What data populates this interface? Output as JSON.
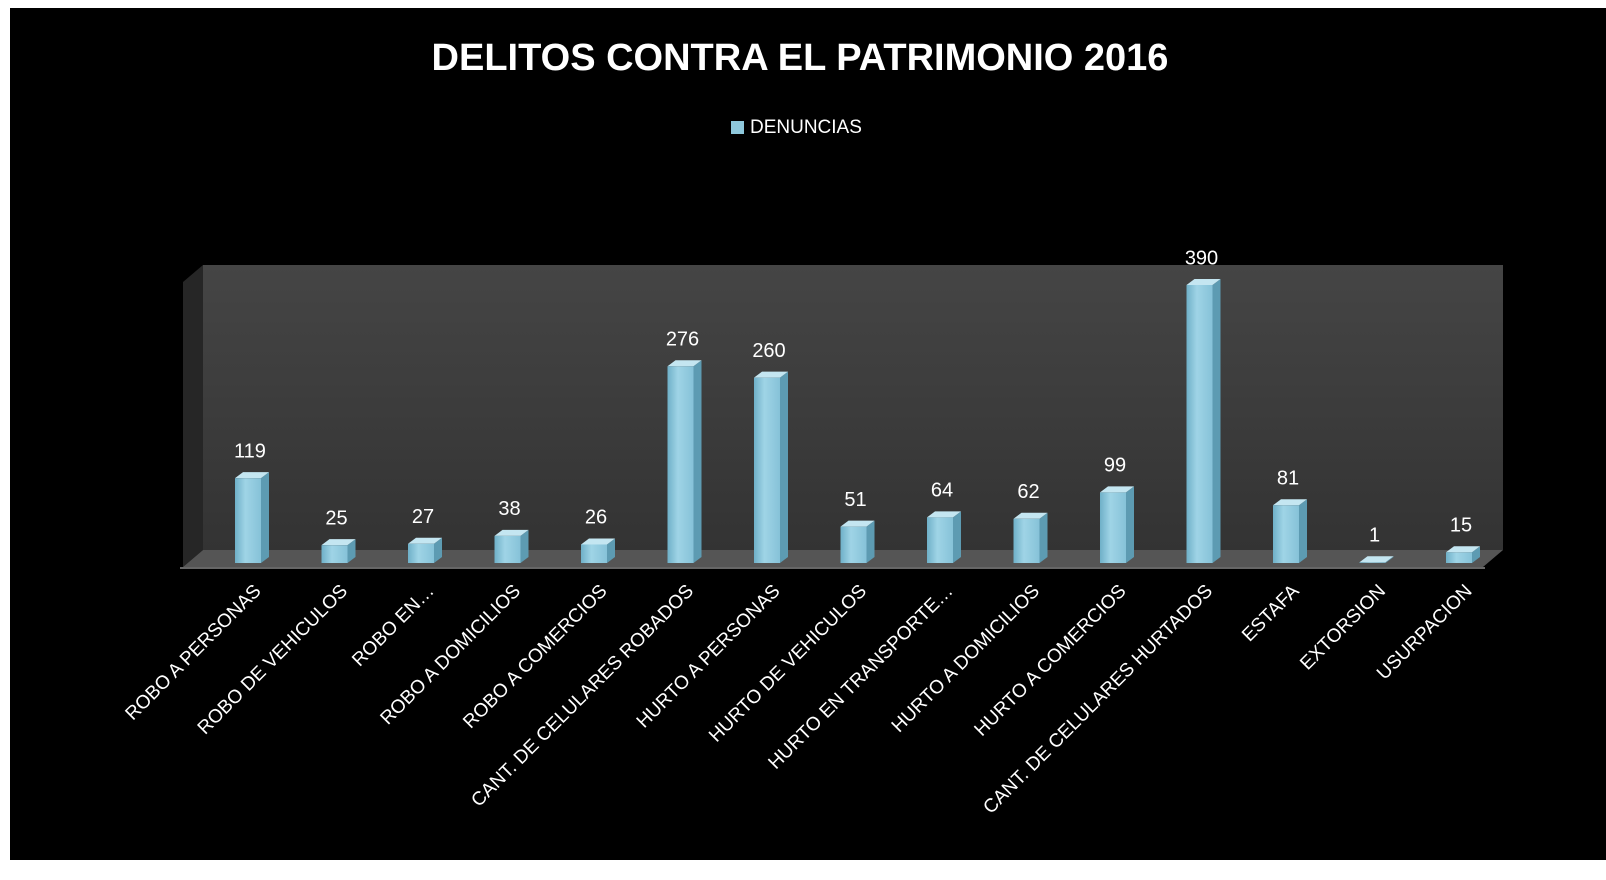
{
  "chart_data": {
    "type": "bar",
    "title": "DELITOS CONTRA EL PATRIMONIO 2016",
    "categories": [
      "ROBO A PERSONAS",
      "ROBO DE VEHICULOS",
      "ROBO EN…",
      "ROBO A DOMICILIOS",
      "ROBO A COMERCIOS",
      "CANT. DE CELULARES ROBADOS",
      "HURTO A PERSONAS",
      "HURTO DE VEHICULOS",
      "HURTO EN TRANSPORTE…",
      "HURTO A DOMICILIOS",
      "HURTO A COMERCIOS",
      "CANT. DE CELULARES HURTADOS",
      "ESTAFA",
      "EXTORSION",
      "USURPACION"
    ],
    "series": [
      {
        "name": "DENUNCIAS",
        "color": "#8ec8dc",
        "values": [
          119,
          25,
          27,
          38,
          26,
          276,
          260,
          51,
          64,
          62,
          99,
          390,
          81,
          1,
          15
        ]
      }
    ],
    "legend": "top"
  }
}
